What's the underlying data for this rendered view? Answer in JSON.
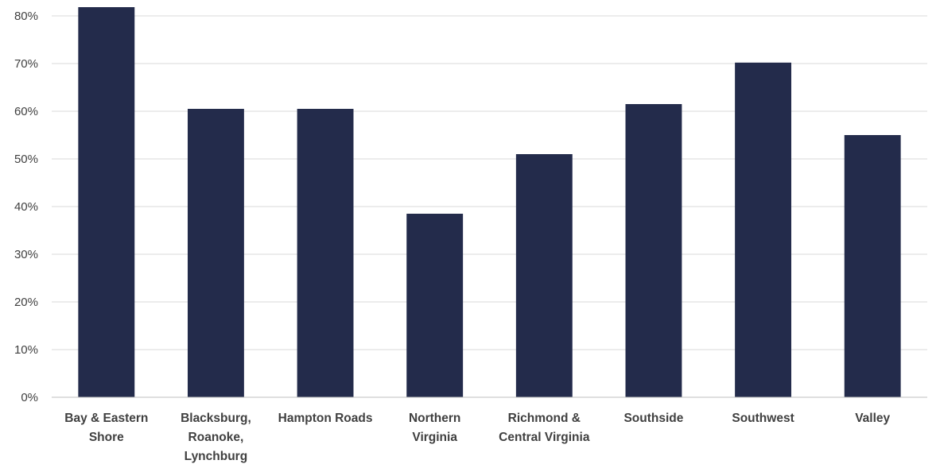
{
  "chart_data": {
    "type": "bar",
    "title": "",
    "xlabel": "",
    "ylabel": "",
    "categories": [
      [
        "Bay & Eastern",
        "Shore"
      ],
      [
        "Blacksburg,",
        "Roanoke,",
        "Lynchburg"
      ],
      [
        "Hampton Roads"
      ],
      [
        "Northern",
        "Virginia"
      ],
      [
        "Richmond &",
        "Central Virginia"
      ],
      [
        "Southside"
      ],
      [
        "Southwest"
      ],
      [
        "Valley"
      ]
    ],
    "values": [
      82,
      60.5,
      60.5,
      38.5,
      51,
      61.5,
      70.2,
      55
    ],
    "ylim": [
      0,
      80
    ],
    "yticks": [
      0,
      10,
      20,
      30,
      40,
      50,
      60,
      70,
      80
    ],
    "ytick_labels": [
      "0%",
      "10%",
      "20%",
      "30%",
      "40%",
      "50%",
      "60%",
      "70%",
      "80%"
    ],
    "grid": true,
    "legend": "none",
    "colors": {
      "bar": "#232B4B",
      "grid": "#D9D9D9",
      "axis": "#BFBFBF",
      "text": "#404040"
    }
  }
}
